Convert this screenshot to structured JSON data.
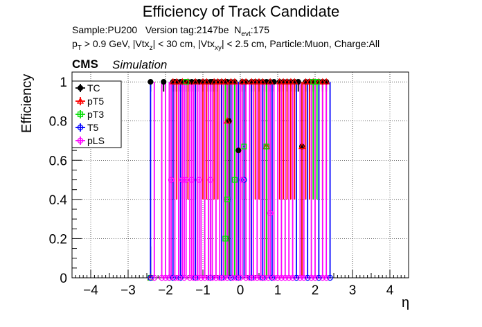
{
  "chart_data": {
    "type": "scatter",
    "title": "Efficiency of Track Candidate",
    "subtitle_line1": {
      "sample": "Sample:PU200",
      "version": "Version tag:2147be",
      "nevt_label": "N",
      "nevt_sub": "evt",
      "nevt_value": ":175"
    },
    "subtitle_line2": {
      "p": "p",
      "p_sub": "T",
      "text1": " > 0.9 GeV, |Vtx",
      "vz_sub": "z",
      "text2": "| < 30 cm, |Vtx",
      "vxy_sub": "xy",
      "text3": "| < 2.5 cm, Particle:Muon, Charge:All"
    },
    "cms_label": "CMS",
    "sim_label": "Simulation",
    "xlabel": "η",
    "ylabel": "Efficiency",
    "xlim": [
      -4.5,
      4.5
    ],
    "ylim": [
      0,
      1.05
    ],
    "x_ticks": [
      "−4",
      "−3",
      "−2",
      "−1",
      "0",
      "1",
      "2",
      "3",
      "4"
    ],
    "y_ticks": [
      "0",
      "0.2",
      "0.4",
      "0.6",
      "0.8",
      "1"
    ],
    "grid": true,
    "legend_position": "top-left",
    "series": [
      {
        "name": "TC",
        "color": "#000000",
        "marker": "filled-circle",
        "points": [
          [
            -2.4,
            1.0
          ],
          [
            -2.05,
            1.0
          ],
          [
            -1.8,
            1.0
          ],
          [
            -1.75,
            1.0
          ],
          [
            -1.7,
            1.0
          ],
          [
            -1.6,
            1.0
          ],
          [
            -1.55,
            1.0
          ],
          [
            -1.45,
            1.0
          ],
          [
            -1.4,
            1.0
          ],
          [
            -1.3,
            1.0
          ],
          [
            -1.2,
            1.0
          ],
          [
            -1.1,
            1.0
          ],
          [
            -1.0,
            1.0
          ],
          [
            -0.9,
            1.0
          ],
          [
            -0.8,
            1.0
          ],
          [
            -0.75,
            1.0
          ],
          [
            -0.7,
            1.0
          ],
          [
            -0.6,
            1.0
          ],
          [
            -0.5,
            1.0
          ],
          [
            -0.4,
            1.0
          ],
          [
            -0.35,
            1.0
          ],
          [
            -0.3,
            0.8
          ],
          [
            -0.25,
            1.0
          ],
          [
            -0.15,
            1.0
          ],
          [
            -0.05,
            0.65
          ],
          [
            0.05,
            1.0
          ],
          [
            0.15,
            1.0
          ],
          [
            0.3,
            1.0
          ],
          [
            0.4,
            1.0
          ],
          [
            0.5,
            1.0
          ],
          [
            0.6,
            1.0
          ],
          [
            0.7,
            1.0
          ],
          [
            0.8,
            1.0
          ],
          [
            0.9,
            1.0
          ],
          [
            1.05,
            1.0
          ],
          [
            1.15,
            1.0
          ],
          [
            1.25,
            1.0
          ],
          [
            1.35,
            1.0
          ],
          [
            1.45,
            1.0
          ],
          [
            1.55,
            1.0
          ],
          [
            1.65,
            0.67
          ],
          [
            1.75,
            1.0
          ],
          [
            1.85,
            1.0
          ],
          [
            1.95,
            1.0
          ],
          [
            2.1,
            1.0
          ],
          [
            2.2,
            1.0
          ],
          [
            2.3,
            1.0
          ]
        ]
      },
      {
        "name": "pT5",
        "color": "#ff0000",
        "marker": "open-triangle",
        "points": [
          [
            -2.4,
            0.0
          ],
          [
            -1.8,
            1.0
          ],
          [
            -1.7,
            1.0
          ],
          [
            -1.55,
            1.0
          ],
          [
            -1.4,
            1.0
          ],
          [
            -1.2,
            1.0
          ],
          [
            -1.0,
            1.0
          ],
          [
            -0.9,
            1.0
          ],
          [
            -0.7,
            1.0
          ],
          [
            -0.6,
            1.0
          ],
          [
            -0.5,
            1.0
          ],
          [
            -0.4,
            1.0
          ],
          [
            -0.35,
            0.8
          ],
          [
            -0.25,
            1.0
          ],
          [
            -0.15,
            1.0
          ],
          [
            0.05,
            1.0
          ],
          [
            0.15,
            1.0
          ],
          [
            0.3,
            1.0
          ],
          [
            0.4,
            1.0
          ],
          [
            0.5,
            1.0
          ],
          [
            0.6,
            1.0
          ],
          [
            0.7,
            0.67
          ],
          [
            0.8,
            1.0
          ],
          [
            1.05,
            1.0
          ],
          [
            1.15,
            1.0
          ],
          [
            1.25,
            1.0
          ],
          [
            1.35,
            1.0
          ],
          [
            1.45,
            1.0
          ],
          [
            1.65,
            0.67
          ],
          [
            1.75,
            1.0
          ],
          [
            1.85,
            1.0
          ],
          [
            1.95,
            1.0
          ],
          [
            2.1,
            1.0
          ],
          [
            2.2,
            1.0
          ],
          [
            2.3,
            1.0
          ]
        ]
      },
      {
        "name": "pT3",
        "color": "#00dd00",
        "marker": "open-square",
        "points": [
          [
            -2.4,
            0.0
          ],
          [
            -1.45,
            1.0
          ],
          [
            -0.4,
            0.2
          ],
          [
            -0.35,
            0.4
          ],
          [
            -0.15,
            0.5
          ],
          [
            0.1,
            0.67
          ],
          [
            0.7,
            0.67
          ],
          [
            1.95,
            1.0
          ],
          [
            2.05,
            1.0
          ]
        ]
      },
      {
        "name": "T5",
        "color": "#0000ff",
        "marker": "open-circle",
        "points": [
          [
            -2.4,
            0.0
          ],
          [
            -1.9,
            0.0
          ],
          [
            -1.8,
            0.0
          ],
          [
            -1.6,
            0.0
          ],
          [
            -1.2,
            0.0
          ],
          [
            -0.8,
            0.0
          ],
          [
            -0.5,
            0.0
          ],
          [
            -0.25,
            0.0
          ],
          [
            -0.05,
            0.0
          ],
          [
            0.1,
            0.5
          ],
          [
            0.3,
            0.0
          ],
          [
            0.6,
            0.0
          ],
          [
            0.85,
            0.0
          ],
          [
            1.5,
            0.0
          ],
          [
            1.8,
            0.0
          ],
          [
            2.1,
            0.0
          ],
          [
            2.4,
            0.0
          ]
        ]
      },
      {
        "name": "pLS",
        "color": "#ff00ff",
        "marker": "open-circle",
        "points": [
          [
            -2.3,
            0.0
          ],
          [
            -2.1,
            0.0
          ],
          [
            -2.0,
            0.0
          ],
          [
            -1.9,
            0.0
          ],
          [
            -1.85,
            0.5
          ],
          [
            -1.75,
            0.0
          ],
          [
            -1.65,
            0.0
          ],
          [
            -1.55,
            0.5
          ],
          [
            -1.5,
            0.0
          ],
          [
            -1.45,
            0.5
          ],
          [
            -1.35,
            0.0
          ],
          [
            -1.3,
            0.5
          ],
          [
            -1.25,
            0.0
          ],
          [
            -1.15,
            0.0
          ],
          [
            -1.1,
            0.5
          ],
          [
            -1.05,
            0.0
          ],
          [
            -0.95,
            0.0
          ],
          [
            -0.85,
            0.0
          ],
          [
            -0.8,
            0.5
          ],
          [
            -0.75,
            0.0
          ],
          [
            -0.65,
            0.0
          ],
          [
            -0.55,
            0.0
          ],
          [
            -0.45,
            0.0
          ],
          [
            -0.35,
            0.0
          ],
          [
            -0.2,
            0.0
          ],
          [
            -0.1,
            0.0
          ],
          [
            0.0,
            0.0
          ],
          [
            0.05,
            0.5
          ],
          [
            0.15,
            0.0
          ],
          [
            0.25,
            0.0
          ],
          [
            0.35,
            0.0
          ],
          [
            0.45,
            0.0
          ],
          [
            0.55,
            0.0
          ],
          [
            0.65,
            0.0
          ],
          [
            0.75,
            0.0
          ],
          [
            0.8,
            0.33
          ],
          [
            0.9,
            0.0
          ],
          [
            1.0,
            0.0
          ],
          [
            1.1,
            0.0
          ],
          [
            1.2,
            0.0
          ],
          [
            1.3,
            0.0
          ],
          [
            1.4,
            0.0
          ],
          [
            1.6,
            0.0
          ],
          [
            1.7,
            0.0
          ],
          [
            1.9,
            0.0
          ],
          [
            2.0,
            0.0
          ],
          [
            2.2,
            0.0
          ],
          [
            2.3,
            0.0
          ]
        ]
      }
    ]
  }
}
